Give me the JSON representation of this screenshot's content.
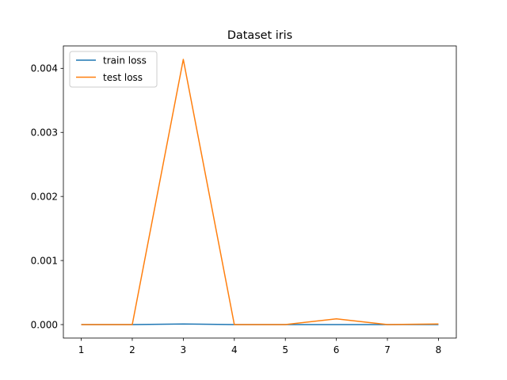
{
  "chart_data": {
    "type": "line",
    "title": "Dataset iris",
    "xlabel": "",
    "ylabel": "",
    "x": [
      1,
      2,
      3,
      4,
      5,
      6,
      7,
      8
    ],
    "xticks": [
      "1",
      "2",
      "3",
      "4",
      "5",
      "6",
      "7",
      "8"
    ],
    "yticks": [
      "0.000",
      "0.001",
      "0.002",
      "0.003",
      "0.004"
    ],
    "xlim": [
      0.65,
      8.35
    ],
    "ylim": [
      -0.00021,
      0.00435
    ],
    "grid": false,
    "legend_position": "top-left",
    "series": [
      {
        "name": "train loss",
        "color": "#1f77b4",
        "values": [
          0.0,
          0.0,
          1e-05,
          0.0,
          0.0,
          0.0,
          0.0,
          0.0
        ]
      },
      {
        "name": "test loss",
        "color": "#ff7f0e",
        "values": [
          0.0,
          0.0,
          0.00414,
          0.0,
          0.0,
          9e-05,
          0.0,
          1e-05
        ]
      }
    ]
  }
}
